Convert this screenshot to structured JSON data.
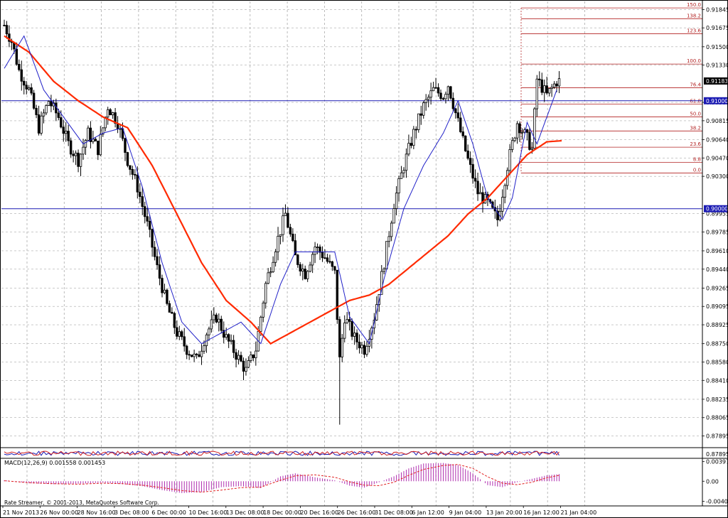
{
  "chart_data": {
    "type": "line",
    "symbol_tag_lines": [
      0.91,
      0.9
    ],
    "current_price": 0.91183,
    "price_axis_labels": [
      "0.91845",
      "0.91675",
      "0.91500",
      "0.91330",
      "0.90985",
      "0.90815",
      "0.90640",
      "0.90470",
      "0.90300",
      "0.89955",
      "0.89785",
      "0.89610",
      "0.89440",
      "0.89265",
      "0.89095",
      "0.88925",
      "0.88750",
      "0.88580",
      "0.88410",
      "0.88235",
      "0.88065",
      "0.87895"
    ],
    "tag_labels": [
      "0.91183",
      "0.91000",
      "0.90000"
    ],
    "time_axis_labels": [
      "21 Nov 2013",
      "26 Nov 00:00",
      "28 Nov 16:00",
      "3 Dec 08:00",
      "6 Dec 00:00",
      "10 Dec 16:00",
      "13 Dec 08:00",
      "18 Dec 00:00",
      "20 Dec 16:00",
      "26 Dec 16:00",
      "31 Dec 08:00",
      "6 Jan 12:00",
      "9 Jan 04:00",
      "13 Jan 20:00",
      "16 Jan 12:00",
      "21 Jan 04:00"
    ],
    "fibonacci_levels": [
      {
        "label": "150.0",
        "price": 0.9186
      },
      {
        "label": "138.2",
        "price": 0.9176
      },
      {
        "label": "123.6",
        "price": 0.9162
      },
      {
        "label": "100.0",
        "price": 0.9134
      },
      {
        "label": "76.4",
        "price": 0.9112
      },
      {
        "label": "61.8",
        "price": 0.9097
      },
      {
        "label": "50.0",
        "price": 0.9085
      },
      {
        "label": "38.2",
        "price": 0.9072
      },
      {
        "label": "23.6",
        "price": 0.9057
      },
      {
        "label": "8.8",
        "price": 0.9043
      },
      {
        "label": "0.0",
        "price": 0.9033
      }
    ],
    "price_series_anchors": [
      [
        0,
        0.917
      ],
      [
        3,
        0.9155
      ],
      [
        6,
        0.9128
      ],
      [
        10,
        0.911
      ],
      [
        14,
        0.9075
      ],
      [
        18,
        0.91
      ],
      [
        22,
        0.9085
      ],
      [
        26,
        0.906
      ],
      [
        30,
        0.9045
      ],
      [
        34,
        0.907
      ],
      [
        38,
        0.9055
      ],
      [
        42,
        0.9095
      ],
      [
        46,
        0.908
      ],
      [
        50,
        0.9045
      ],
      [
        54,
        0.902
      ],
      [
        58,
        0.8985
      ],
      [
        62,
        0.8945
      ],
      [
        66,
        0.891
      ],
      [
        70,
        0.8885
      ],
      [
        74,
        0.887
      ],
      [
        78,
        0.886
      ],
      [
        82,
        0.8885
      ],
      [
        86,
        0.89
      ],
      [
        90,
        0.888
      ],
      [
        94,
        0.8865
      ],
      [
        98,
        0.885
      ],
      [
        102,
        0.887
      ],
      [
        106,
        0.893
      ],
      [
        110,
        0.8965
      ],
      [
        114,
        0.8995
      ],
      [
        118,
        0.8955
      ],
      [
        122,
        0.894
      ],
      [
        126,
        0.8965
      ],
      [
        130,
        0.8955
      ],
      [
        134,
        0.894
      ],
      [
        136,
        0.886
      ],
      [
        138,
        0.89
      ],
      [
        142,
        0.888
      ],
      [
        146,
        0.887
      ],
      [
        150,
        0.89
      ],
      [
        154,
        0.895
      ],
      [
        158,
        0.9005
      ],
      [
        162,
        0.904
      ],
      [
        166,
        0.907
      ],
      [
        170,
        0.9095
      ],
      [
        174,
        0.911
      ],
      [
        178,
        0.9105
      ],
      [
        180,
        0.9115
      ],
      [
        184,
        0.908
      ],
      [
        188,
        0.9045
      ],
      [
        192,
        0.9015
      ],
      [
        196,
        0.9005
      ],
      [
        200,
        0.899
      ],
      [
        204,
        0.904
      ],
      [
        208,
        0.908
      ],
      [
        212,
        0.9065
      ],
      [
        214,
        0.9055
      ],
      [
        216,
        0.912
      ],
      [
        220,
        0.9105
      ],
      [
        224,
        0.9118
      ]
    ],
    "ma_fast_anchors": [
      [
        0,
        0.913
      ],
      [
        8,
        0.916
      ],
      [
        16,
        0.911
      ],
      [
        24,
        0.9085
      ],
      [
        32,
        0.906
      ],
      [
        40,
        0.907
      ],
      [
        48,
        0.9075
      ],
      [
        56,
        0.902
      ],
      [
        64,
        0.895
      ],
      [
        72,
        0.8895
      ],
      [
        80,
        0.8875
      ],
      [
        88,
        0.8885
      ],
      [
        96,
        0.8895
      ],
      [
        104,
        0.8875
      ],
      [
        112,
        0.893
      ],
      [
        118,
        0.896
      ],
      [
        126,
        0.896
      ],
      [
        134,
        0.896
      ],
      [
        140,
        0.89
      ],
      [
        148,
        0.8875
      ],
      [
        154,
        0.8935
      ],
      [
        162,
        0.9
      ],
      [
        170,
        0.904
      ],
      [
        178,
        0.907
      ],
      [
        184,
        0.91
      ],
      [
        190,
        0.906
      ],
      [
        196,
        0.901
      ],
      [
        202,
        0.899
      ],
      [
        206,
        0.901
      ],
      [
        212,
        0.908
      ],
      [
        216,
        0.906
      ],
      [
        224,
        0.911
      ]
    ],
    "ma_slow_anchors": [
      [
        0,
        0.916
      ],
      [
        10,
        0.9145
      ],
      [
        20,
        0.9118
      ],
      [
        30,
        0.91
      ],
      [
        40,
        0.9085
      ],
      [
        50,
        0.9075
      ],
      [
        60,
        0.904
      ],
      [
        70,
        0.8995
      ],
      [
        80,
        0.895
      ],
      [
        90,
        0.8915
      ],
      [
        100,
        0.8895
      ],
      [
        108,
        0.8875
      ],
      [
        116,
        0.8885
      ],
      [
        124,
        0.8895
      ],
      [
        132,
        0.8905
      ],
      [
        140,
        0.8915
      ],
      [
        148,
        0.892
      ],
      [
        156,
        0.893
      ],
      [
        164,
        0.8945
      ],
      [
        172,
        0.896
      ],
      [
        180,
        0.8975
      ],
      [
        188,
        0.8995
      ],
      [
        196,
        0.901
      ],
      [
        204,
        0.903
      ],
      [
        212,
        0.905
      ],
      [
        220,
        0.9062
      ],
      [
        226,
        0.9063
      ]
    ],
    "macd": {
      "title": "MACD(12,26,9) 0.001558 0.001453",
      "axis_labels": [
        "0.003974",
        "0.00",
        "-0.004085"
      ],
      "ylim": [
        -0.005,
        0.0045
      ],
      "histogram_anchors": [
        [
          0,
          0.0002
        ],
        [
          10,
          -0.0004
        ],
        [
          20,
          -0.0006
        ],
        [
          30,
          -0.0005
        ],
        [
          40,
          -0.0003
        ],
        [
          48,
          -0.0006
        ],
        [
          56,
          -0.001
        ],
        [
          64,
          -0.0018
        ],
        [
          72,
          -0.0024
        ],
        [
          80,
          -0.0022
        ],
        [
          88,
          -0.0012
        ],
        [
          96,
          -0.001
        ],
        [
          104,
          -0.0014
        ],
        [
          112,
          0.001
        ],
        [
          118,
          0.0016
        ],
        [
          126,
          0.0008
        ],
        [
          134,
          0.0002
        ],
        [
          140,
          -0.0009
        ],
        [
          146,
          -0.0013
        ],
        [
          152,
          -0.0002
        ],
        [
          158,
          0.001
        ],
        [
          164,
          0.0026
        ],
        [
          170,
          0.0036
        ],
        [
          178,
          0.0037
        ],
        [
          184,
          0.0033
        ],
        [
          190,
          0.0016
        ],
        [
          196,
          -0.0008
        ],
        [
          202,
          -0.0012
        ],
        [
          208,
          -0.0002
        ],
        [
          214,
          0.0005
        ],
        [
          220,
          0.0012
        ],
        [
          226,
          0.0015
        ]
      ],
      "signal_anchors": [
        [
          0,
          0.0001
        ],
        [
          10,
          -0.0003
        ],
        [
          20,
          -0.0005
        ],
        [
          30,
          -0.0006
        ],
        [
          40,
          -0.0004
        ],
        [
          48,
          -0.0005
        ],
        [
          56,
          -0.0008
        ],
        [
          64,
          -0.0013
        ],
        [
          72,
          -0.0019
        ],
        [
          80,
          -0.0022
        ],
        [
          88,
          -0.0018
        ],
        [
          96,
          -0.0013
        ],
        [
          104,
          -0.0012
        ],
        [
          112,
          0.0002
        ],
        [
          118,
          0.0011
        ],
        [
          126,
          0.0013
        ],
        [
          134,
          0.0008
        ],
        [
          140,
          -0.0001
        ],
        [
          146,
          -0.0008
        ],
        [
          152,
          -0.0009
        ],
        [
          158,
          -0.0002
        ],
        [
          164,
          0.0012
        ],
        [
          170,
          0.0024
        ],
        [
          178,
          0.0032
        ],
        [
          184,
          0.0034
        ],
        [
          190,
          0.0026
        ],
        [
          196,
          0.0009
        ],
        [
          202,
          -0.0004
        ],
        [
          208,
          -0.0007
        ],
        [
          214,
          -0.0002
        ],
        [
          220,
          0.0007
        ],
        [
          226,
          0.0013
        ]
      ]
    },
    "mini_indicator": {
      "axis_labels": [
        "0.87895"
      ]
    },
    "footer_text": "Rate Streamer, © 2001-2013, MetaQuotes Software Corp.",
    "ylim": [
      0.878,
      0.9192
    ],
    "grid": true
  },
  "colors": {
    "background": "#ffffff",
    "candles": "#000000",
    "grid": "#aaaaaa",
    "ma_fast": "#2020c8",
    "ma_slow": "#ff2a00",
    "fibonacci": "#b22222",
    "hline": "#1a1ab3",
    "tag_bg": "#1a1ab3",
    "current_tag_bg": "#000000",
    "macd_hist": "#b030b0",
    "macd_signal": "#e02020"
  }
}
